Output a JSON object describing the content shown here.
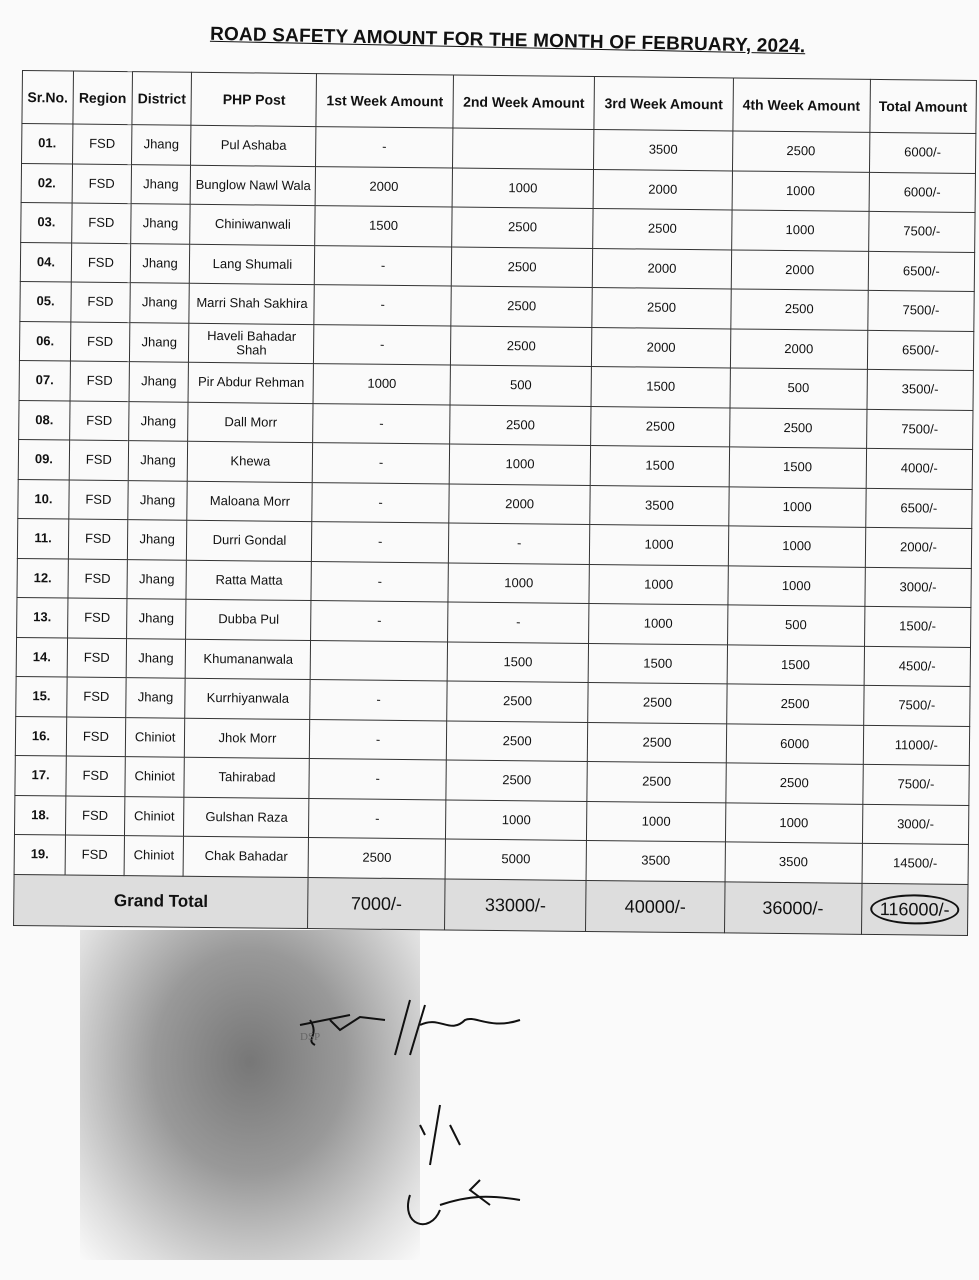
{
  "title": "ROAD SAFETY AMOUNT FOR THE MONTH OF FEBRUARY, 2024.",
  "headers": [
    "Sr.No.",
    "Region",
    "District",
    "PHP Post",
    "1st Week Amount",
    "2nd Week Amount",
    "3rd Week Amount",
    "4th Week Amount",
    "Total Amount"
  ],
  "rows": [
    [
      "01.",
      "FSD",
      "Jhang",
      "Pul Ashaba",
      "-",
      "",
      "3500",
      "2500",
      "6000/-"
    ],
    [
      "02.",
      "FSD",
      "Jhang",
      "Bunglow Nawl Wala",
      "2000",
      "1000",
      "2000",
      "1000",
      "6000/-"
    ],
    [
      "03.",
      "FSD",
      "Jhang",
      "Chiniwanwali",
      "1500",
      "2500",
      "2500",
      "1000",
      "7500/-"
    ],
    [
      "04.",
      "FSD",
      "Jhang",
      "Lang Shumali",
      "-",
      "2500",
      "2000",
      "2000",
      "6500/-"
    ],
    [
      "05.",
      "FSD",
      "Jhang",
      "Marri Shah Sakhira",
      "-",
      "2500",
      "2500",
      "2500",
      "7500/-"
    ],
    [
      "06.",
      "FSD",
      "Jhang",
      "Haveli Bahadar Shah",
      "-",
      "2500",
      "2000",
      "2000",
      "6500/-"
    ],
    [
      "07.",
      "FSD",
      "Jhang",
      "Pir Abdur Rehman",
      "1000",
      "500",
      "1500",
      "500",
      "3500/-"
    ],
    [
      "08.",
      "FSD",
      "Jhang",
      "Dall Morr",
      "-",
      "2500",
      "2500",
      "2500",
      "7500/-"
    ],
    [
      "09.",
      "FSD",
      "Jhang",
      "Khewa",
      "-",
      "1000",
      "1500",
      "1500",
      "4000/-"
    ],
    [
      "10.",
      "FSD",
      "Jhang",
      "Maloana Morr",
      "-",
      "2000",
      "3500",
      "1000",
      "6500/-"
    ],
    [
      "11.",
      "FSD",
      "Jhang",
      "Durri Gondal",
      "-",
      "-",
      "1000",
      "1000",
      "2000/-"
    ],
    [
      "12.",
      "FSD",
      "Jhang",
      "Ratta Matta",
      "-",
      "1000",
      "1000",
      "1000",
      "3000/-"
    ],
    [
      "13.",
      "FSD",
      "Jhang",
      "Dubba Pul",
      "-",
      "-",
      "1000",
      "500",
      "1500/-"
    ],
    [
      "14.",
      "FSD",
      "Jhang",
      "Khumananwala",
      "",
      "1500",
      "1500",
      "1500",
      "4500/-"
    ],
    [
      "15.",
      "FSD",
      "Jhang",
      "Kurrhiyanwala",
      "-",
      "2500",
      "2500",
      "2500",
      "7500/-"
    ],
    [
      "16.",
      "FSD",
      "Chiniot",
      "Jhok Morr",
      "-",
      "2500",
      "2500",
      "6000",
      "11000/-"
    ],
    [
      "17.",
      "FSD",
      "Chiniot",
      "Tahirabad",
      "-",
      "2500",
      "2500",
      "2500",
      "7500/-"
    ],
    [
      "18.",
      "FSD",
      "Chiniot",
      "Gulshan Raza",
      "-",
      "1000",
      "1000",
      "1000",
      "3000/-"
    ],
    [
      "19.",
      "FSD",
      "Chiniot",
      "Chak Bahadar",
      "2500",
      "5000",
      "3500",
      "3500",
      "14500/-"
    ]
  ],
  "grand_total": {
    "label": "Grand Total",
    "week1": "7000/-",
    "week2": "33000/-",
    "week3": "40000/-",
    "week4": "36000/-",
    "total": "116000/-"
  },
  "signature": "handwritten signature and stamp"
}
